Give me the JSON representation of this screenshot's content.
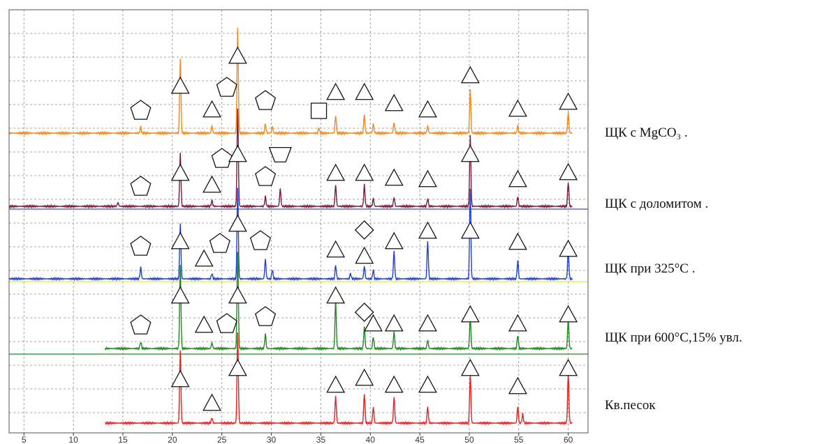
{
  "chart_data": {
    "type": "line",
    "title": "",
    "xlabel": "",
    "ylabel": "",
    "xlim": [
      3.5,
      62
    ],
    "x_ticks": [
      5,
      10,
      15,
      20,
      25,
      30,
      35,
      40,
      45,
      50,
      55,
      60
    ],
    "x_tick_labels": [
      "5",
      "10",
      "15",
      "20",
      "25",
      "30",
      "35",
      "40",
      "45",
      "50",
      "55",
      "60"
    ],
    "grid": true,
    "legend_placement": "right, beside each trace",
    "series": [
      {
        "name": "ЩК с MgCO₃ .",
        "color": "#f28a1e",
        "baseline_level": 1,
        "peaks": [
          {
            "x": 16.8,
            "h": 0.06
          },
          {
            "x": 20.8,
            "h": 0.72
          },
          {
            "x": 24.0,
            "h": 0.07
          },
          {
            "x": 26.6,
            "h": 1.0
          },
          {
            "x": 29.4,
            "h": 0.09
          },
          {
            "x": 30.1,
            "h": 0.06
          },
          {
            "x": 34.8,
            "h": 0.05
          },
          {
            "x": 36.5,
            "h": 0.17
          },
          {
            "x": 39.4,
            "h": 0.18
          },
          {
            "x": 40.3,
            "h": 0.09
          },
          {
            "x": 42.4,
            "h": 0.1
          },
          {
            "x": 45.8,
            "h": 0.07
          },
          {
            "x": 50.1,
            "h": 0.42
          },
          {
            "x": 54.9,
            "h": 0.07
          },
          {
            "x": 60.0,
            "h": 0.2
          }
        ]
      },
      {
        "name": "ЩК с доломитом .",
        "color": "#7a1a3f",
        "baseline_level": 2,
        "peaks": [
          {
            "x": 14.5,
            "h": 0.04
          },
          {
            "x": 20.8,
            "h": 0.55
          },
          {
            "x": 24.0,
            "h": 0.06
          },
          {
            "x": 26.6,
            "h": 1.0
          },
          {
            "x": 29.4,
            "h": 0.1
          },
          {
            "x": 30.9,
            "h": 0.18
          },
          {
            "x": 36.5,
            "h": 0.22
          },
          {
            "x": 39.4,
            "h": 0.22
          },
          {
            "x": 40.3,
            "h": 0.08
          },
          {
            "x": 42.4,
            "h": 0.09
          },
          {
            "x": 45.8,
            "h": 0.08
          },
          {
            "x": 50.1,
            "h": 0.72
          },
          {
            "x": 54.9,
            "h": 0.1
          },
          {
            "x": 60.0,
            "h": 0.25
          }
        ]
      },
      {
        "name": "ЩК при 325°С .",
        "color": "#1f3fd6",
        "baseline_level": 3,
        "peaks": [
          {
            "x": 16.8,
            "h": 0.13
          },
          {
            "x": 20.8,
            "h": 0.62
          },
          {
            "x": 24.0,
            "h": 0.06
          },
          {
            "x": 26.6,
            "h": 1.0
          },
          {
            "x": 29.4,
            "h": 0.22
          },
          {
            "x": 30.1,
            "h": 0.1
          },
          {
            "x": 36.5,
            "h": 0.15
          },
          {
            "x": 38.0,
            "h": 0.06
          },
          {
            "x": 39.4,
            "h": 0.14
          },
          {
            "x": 40.3,
            "h": 0.1
          },
          {
            "x": 42.4,
            "h": 0.3
          },
          {
            "x": 45.8,
            "h": 0.42
          },
          {
            "x": 50.1,
            "h": 1.0
          },
          {
            "x": 54.9,
            "h": 0.2
          },
          {
            "x": 60.0,
            "h": 0.32
          }
        ]
      },
      {
        "name": "ЩК при 600°С,15% увл.",
        "color": "#1f8a1f",
        "baseline_level": 4,
        "start_x": 13.2,
        "peaks": [
          {
            "x": 16.8,
            "h": 0.07
          },
          {
            "x": 20.8,
            "h": 0.85
          },
          {
            "x": 24.0,
            "h": 0.06
          },
          {
            "x": 26.6,
            "h": 1.0
          },
          {
            "x": 29.4,
            "h": 0.15
          },
          {
            "x": 36.5,
            "h": 0.5
          },
          {
            "x": 39.4,
            "h": 0.22
          },
          {
            "x": 40.3,
            "h": 0.12
          },
          {
            "x": 42.4,
            "h": 0.17
          },
          {
            "x": 45.8,
            "h": 0.09
          },
          {
            "x": 50.1,
            "h": 0.32
          },
          {
            "x": 54.9,
            "h": 0.14
          },
          {
            "x": 60.0,
            "h": 0.3
          }
        ]
      },
      {
        "name": "Кв.песок",
        "color": "#e8201f",
        "baseline_level": 5,
        "start_x": 13.2,
        "peaks": [
          {
            "x": 20.8,
            "h": 0.8
          },
          {
            "x": 24.0,
            "h": 0.06
          },
          {
            "x": 26.6,
            "h": 1.0
          },
          {
            "x": 36.5,
            "h": 0.3
          },
          {
            "x": 39.4,
            "h": 0.33
          },
          {
            "x": 40.3,
            "h": 0.18
          },
          {
            "x": 42.4,
            "h": 0.28
          },
          {
            "x": 45.8,
            "h": 0.18
          },
          {
            "x": 50.1,
            "h": 0.55
          },
          {
            "x": 54.9,
            "h": 0.18
          },
          {
            "x": 55.4,
            "h": 0.1
          },
          {
            "x": 60.0,
            "h": 0.55
          }
        ]
      }
    ],
    "phase_markers": {
      "shape_types": [
        "triangle",
        "pentagon",
        "square",
        "inverted-trapezoid",
        "diamond"
      ],
      "series_markers": [
        [
          {
            "shape": "pentagon",
            "x": 16.8
          },
          {
            "shape": "triangle",
            "x": 20.8
          },
          {
            "shape": "triangle",
            "x": 24.0
          },
          {
            "shape": "pentagon",
            "x": 25.5
          },
          {
            "shape": "triangle",
            "x": 26.6
          },
          {
            "shape": "pentagon",
            "x": 29.4
          },
          {
            "shape": "square",
            "x": 34.8
          },
          {
            "shape": "triangle",
            "x": 36.5
          },
          {
            "shape": "triangle",
            "x": 39.4
          },
          {
            "shape": "triangle",
            "x": 42.4
          },
          {
            "shape": "triangle",
            "x": 45.8
          },
          {
            "shape": "triangle",
            "x": 50.1
          },
          {
            "shape": "triangle",
            "x": 54.9
          },
          {
            "shape": "triangle",
            "x": 60.0
          }
        ],
        [
          {
            "shape": "pentagon",
            "x": 16.8
          },
          {
            "shape": "triangle",
            "x": 20.8
          },
          {
            "shape": "triangle",
            "x": 24.0
          },
          {
            "shape": "pentagon",
            "x": 25.0
          },
          {
            "shape": "triangle",
            "x": 26.6
          },
          {
            "shape": "pentagon",
            "x": 29.4
          },
          {
            "shape": "inverted-trapezoid",
            "x": 30.9
          },
          {
            "shape": "triangle",
            "x": 36.5
          },
          {
            "shape": "triangle",
            "x": 39.4
          },
          {
            "shape": "triangle",
            "x": 42.4
          },
          {
            "shape": "triangle",
            "x": 45.8
          },
          {
            "shape": "triangle",
            "x": 50.1
          },
          {
            "shape": "triangle",
            "x": 54.9
          },
          {
            "shape": "triangle",
            "x": 60.0
          }
        ],
        [
          {
            "shape": "pentagon",
            "x": 16.8
          },
          {
            "shape": "triangle",
            "x": 20.8
          },
          {
            "shape": "triangle",
            "x": 23.2
          },
          {
            "shape": "pentagon",
            "x": 24.8
          },
          {
            "shape": "triangle",
            "x": 26.6
          },
          {
            "shape": "pentagon",
            "x": 28.9
          },
          {
            "shape": "triangle",
            "x": 36.5
          },
          {
            "shape": "diamond",
            "x": 39.4
          },
          {
            "shape": "triangle",
            "x": 39.4
          },
          {
            "shape": "triangle",
            "x": 42.4
          },
          {
            "shape": "triangle",
            "x": 45.8
          },
          {
            "shape": "triangle",
            "x": 50.1
          },
          {
            "shape": "triangle",
            "x": 54.9
          },
          {
            "shape": "triangle",
            "x": 60.0
          }
        ],
        [
          {
            "shape": "pentagon",
            "x": 16.8
          },
          {
            "shape": "triangle",
            "x": 20.8
          },
          {
            "shape": "triangle",
            "x": 23.2
          },
          {
            "shape": "pentagon",
            "x": 25.5
          },
          {
            "shape": "triangle",
            "x": 26.6
          },
          {
            "shape": "pentagon",
            "x": 29.4
          },
          {
            "shape": "triangle",
            "x": 36.5
          },
          {
            "shape": "diamond",
            "x": 39.4
          },
          {
            "shape": "triangle",
            "x": 40.3
          },
          {
            "shape": "triangle",
            "x": 42.4
          },
          {
            "shape": "triangle",
            "x": 45.8
          },
          {
            "shape": "triangle",
            "x": 50.1
          },
          {
            "shape": "triangle",
            "x": 54.9
          },
          {
            "shape": "triangle",
            "x": 60.0
          }
        ],
        [
          {
            "shape": "triangle",
            "x": 20.8
          },
          {
            "shape": "triangle",
            "x": 24.0
          },
          {
            "shape": "triangle",
            "x": 26.6
          },
          {
            "shape": "triangle",
            "x": 36.5
          },
          {
            "shape": "triangle",
            "x": 39.4
          },
          {
            "shape": "triangle",
            "x": 42.4
          },
          {
            "shape": "triangle",
            "x": 45.8
          },
          {
            "shape": "triangle",
            "x": 50.1
          },
          {
            "shape": "triangle",
            "x": 54.9
          },
          {
            "shape": "triangle",
            "x": 60.0
          }
        ]
      ]
    },
    "separator_colors": [
      "#3a4fd6",
      "#e6e34a",
      "#1f8a1f"
    ]
  },
  "legend": {
    "labels": [
      {
        "text": "ЩК с MgCO₃ ."
      },
      {
        "text": "ЩК с доломитом ."
      },
      {
        "text": "ЩК при 325°С ."
      },
      {
        "text": "ЩК при 600°С,15% увл."
      },
      {
        "text": "Кв.песок"
      }
    ]
  }
}
